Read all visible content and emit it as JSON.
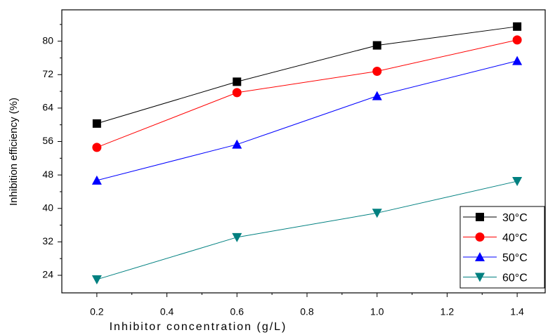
{
  "chart_data": {
    "type": "line",
    "x_label": "Inhibitor concentration (g/L)",
    "y_label": "Inhibition efficiency (%)",
    "x": [
      0.2,
      0.6,
      1.0,
      1.4
    ],
    "xlim": [
      0.1,
      1.48
    ],
    "xticks": [
      0.2,
      0.4,
      0.6,
      0.8,
      1.0,
      1.2,
      1.4
    ],
    "ylim": [
      19.8,
      87.5
    ],
    "yticks": [
      24,
      32,
      40,
      48,
      56,
      64,
      72,
      80
    ],
    "legend": "lower right",
    "series": [
      {
        "name": "30°C",
        "color": "#000000",
        "marker": "square",
        "values": [
          60.3,
          70.3,
          79.0,
          83.5
        ]
      },
      {
        "name": "40°C",
        "color": "#ff0000",
        "marker": "circle",
        "values": [
          54.6,
          67.7,
          72.8,
          80.3
        ]
      },
      {
        "name": "50°C",
        "color": "#0000ff",
        "marker": "triangle-up",
        "values": [
          46.7,
          55.3,
          66.9,
          75.3
        ]
      },
      {
        "name": "60°C",
        "color": "#008080",
        "marker": "triangle-down",
        "values": [
          23.0,
          33.1,
          38.9,
          46.5
        ]
      }
    ]
  }
}
